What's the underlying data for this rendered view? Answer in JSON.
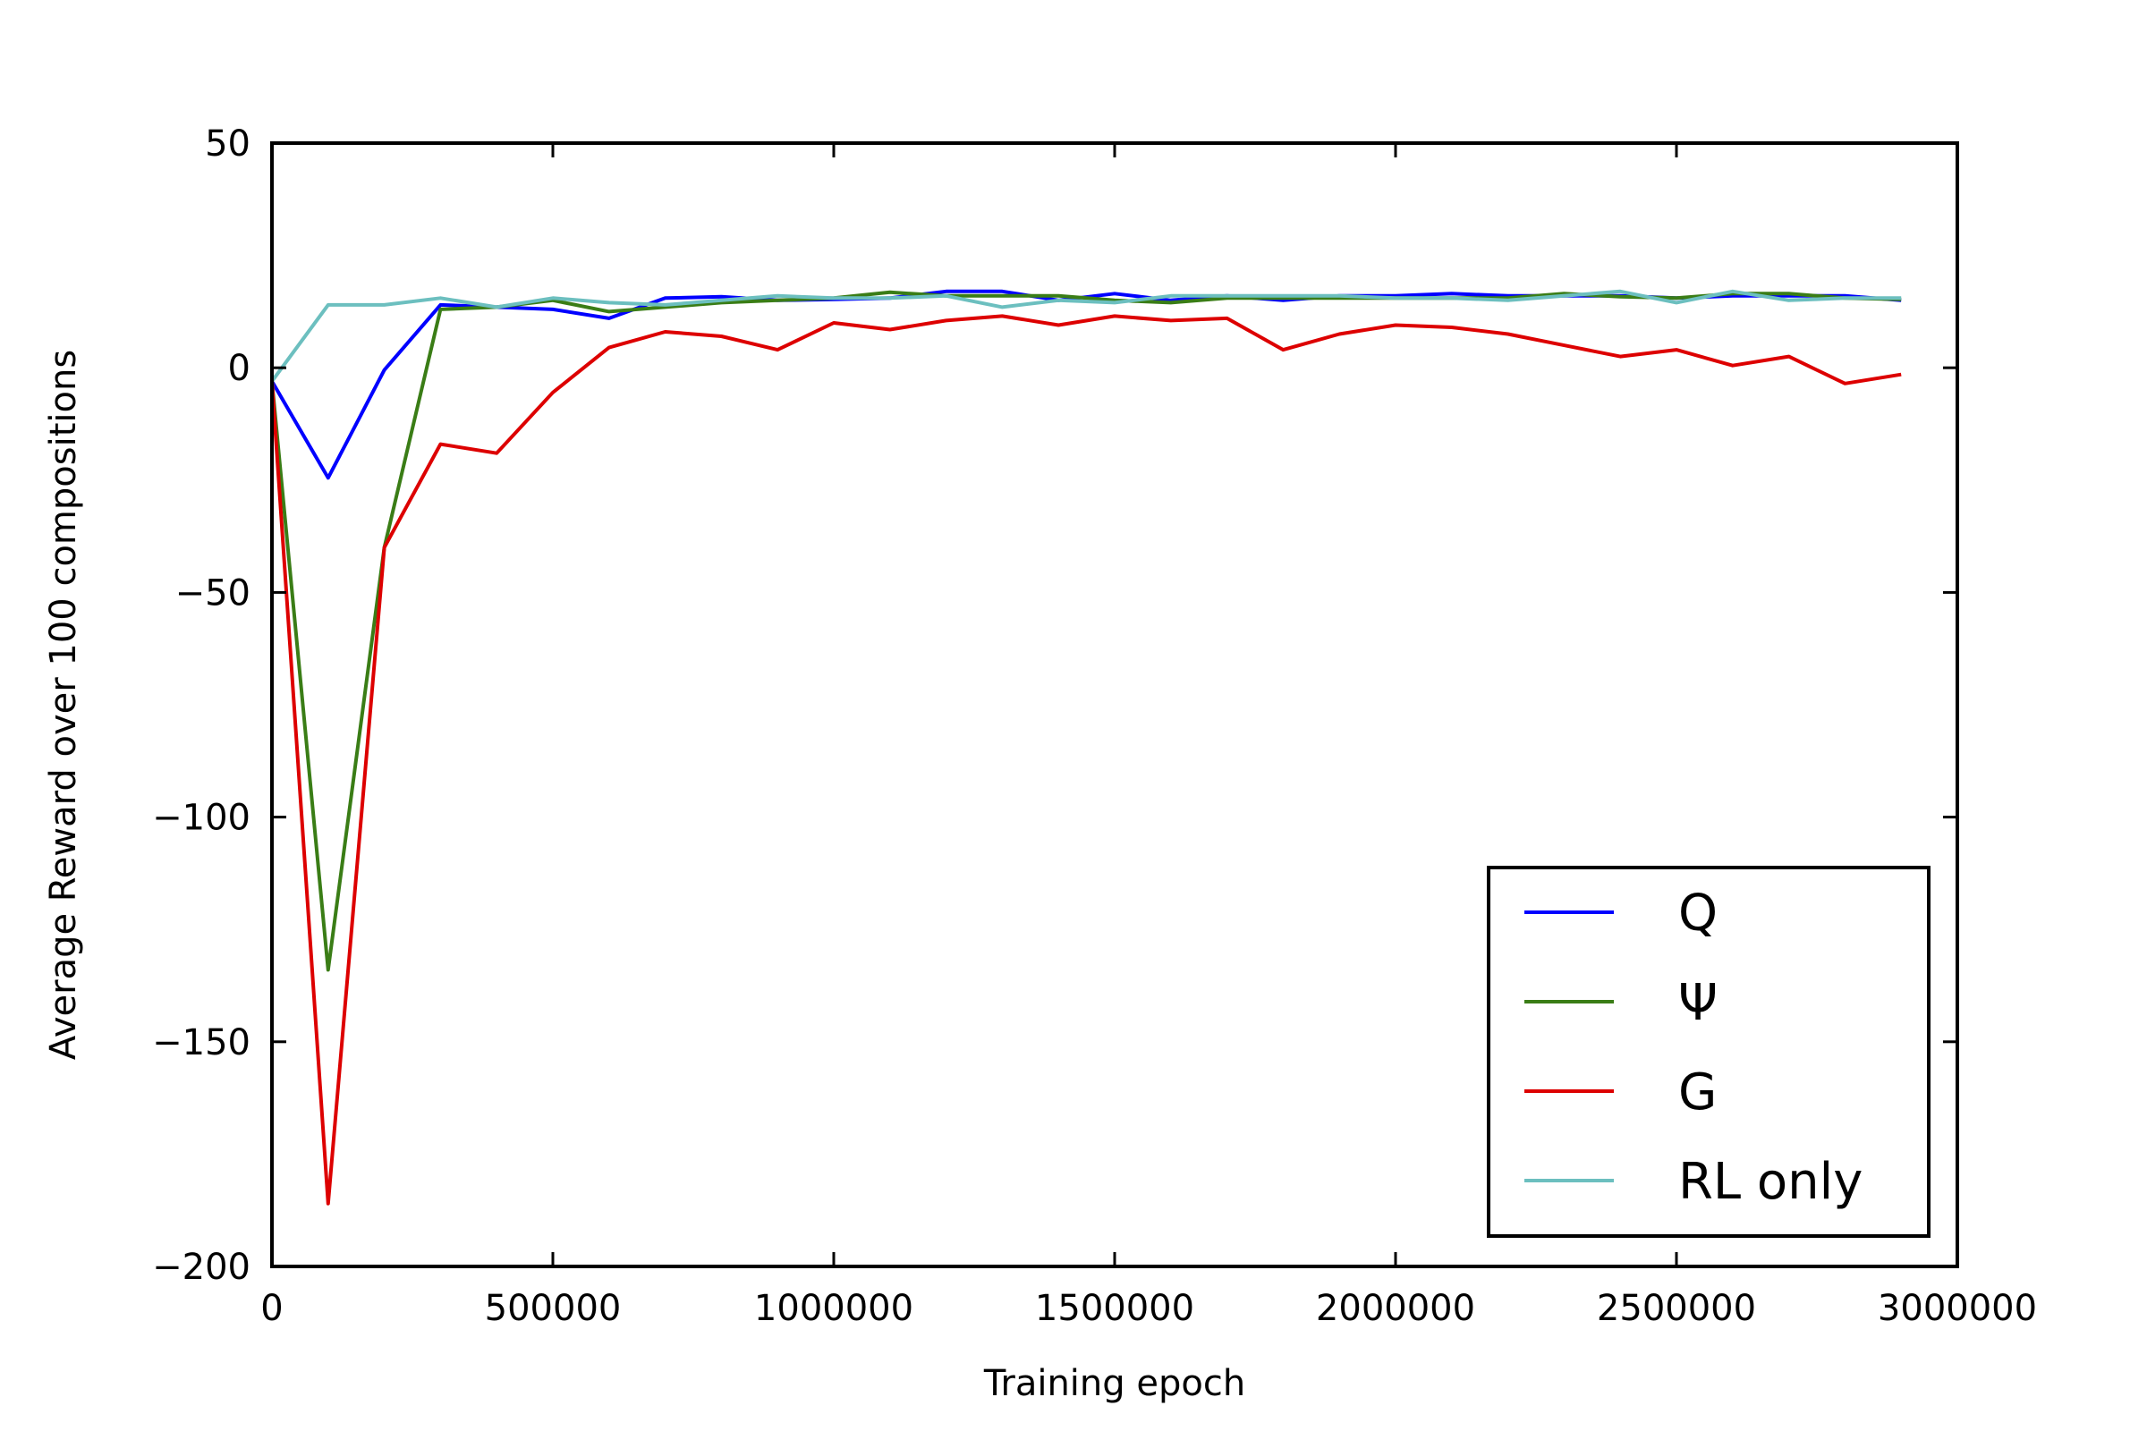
{
  "chart_data": {
    "type": "line",
    "title": "",
    "xlabel": "Training epoch",
    "ylabel": "Average Reward over 100 compositions",
    "xlim": [
      0,
      3000000
    ],
    "ylim": [
      -200,
      50
    ],
    "xticks": [
      0,
      500000,
      1000000,
      1500000,
      2000000,
      2500000,
      3000000
    ],
    "xtick_labels": [
      "0",
      "500000",
      "1000000",
      "1500000",
      "2000000",
      "2500000",
      "3000000"
    ],
    "yticks": [
      50,
      0,
      -50,
      -100,
      -150,
      -200
    ],
    "ytick_labels": [
      "50",
      "0",
      "−50",
      "−100",
      "−150",
      "−200"
    ],
    "grid": false,
    "legend_position": "lower-right",
    "x": [
      0,
      100000,
      200000,
      300000,
      400000,
      500000,
      600000,
      700000,
      800000,
      900000,
      1000000,
      1100000,
      1200000,
      1300000,
      1400000,
      1500000,
      1600000,
      1700000,
      1800000,
      1900000,
      2000000,
      2100000,
      2200000,
      2300000,
      2400000,
      2500000,
      2600000,
      2700000,
      2800000,
      2900000
    ],
    "series": [
      {
        "name": "Q",
        "color": "#0000ff",
        "values": [
          -3,
          -24.5,
          -0.5,
          14,
          13.5,
          13,
          11,
          15.5,
          15.8,
          15,
          15.2,
          15.5,
          17,
          17,
          15,
          16.5,
          15,
          16,
          15,
          16,
          16,
          16.5,
          16,
          16,
          16,
          15.5,
          16,
          16,
          16,
          15
        ]
      },
      {
        "name": "Ψ",
        "color": "#3a7d16",
        "values": [
          -3,
          -134,
          -40,
          13,
          13.5,
          15,
          12.5,
          13.5,
          14.5,
          15,
          15.5,
          16.8,
          16,
          16,
          16,
          15,
          14.5,
          15.5,
          15.5,
          15.5,
          15.5,
          15.5,
          15.5,
          16.5,
          15.8,
          15.5,
          16.5,
          16.5,
          15.5,
          15.2
        ]
      },
      {
        "name": "G",
        "color": "#dd0000",
        "values": [
          -3,
          -186,
          -40,
          -17,
          -19,
          -5.5,
          4.5,
          8,
          7,
          4,
          10,
          8.5,
          10.5,
          11.5,
          9.5,
          11.5,
          10.5,
          11,
          4,
          7.5,
          9.5,
          9,
          7.5,
          5,
          2.5,
          4,
          0.5,
          2.5,
          -3.5,
          -1.5
        ]
      },
      {
        "name": "RL only",
        "color": "#6cbfbf",
        "values": [
          -3,
          14,
          14,
          15.5,
          13.5,
          15.5,
          14.5,
          14,
          15,
          16,
          15.5,
          15.5,
          16,
          13.5,
          15,
          14.5,
          16,
          16,
          16,
          16,
          15.5,
          15.5,
          15,
          16,
          17,
          14.5,
          17,
          15,
          15.5,
          15.5
        ]
      }
    ]
  }
}
